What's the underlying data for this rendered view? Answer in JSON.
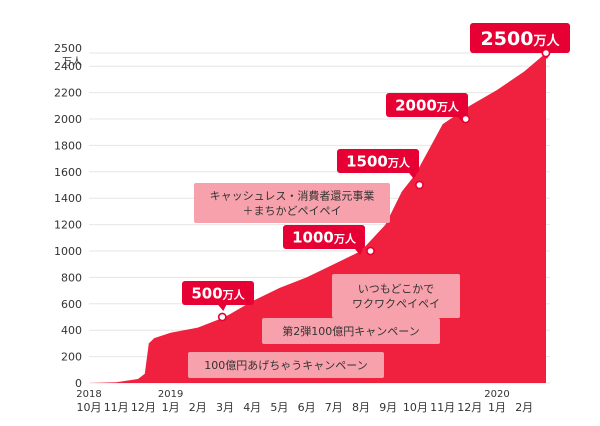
{
  "colors": {
    "area": "#f0213e",
    "callout": "#e60033",
    "callout_text": "#ffffff",
    "note_bg": "#f6a1ab",
    "note_text": "#333333",
    "grid": "#e6e6e6",
    "tick": "#333333"
  },
  "chart_data": {
    "type": "area",
    "title": "",
    "ylabel": "",
    "ylabel_unit": "万人",
    "xlabel": "",
    "ylim": [
      0,
      2500
    ],
    "yticks": [
      0,
      200,
      400,
      600,
      800,
      1000,
      1200,
      1400,
      1600,
      1800,
      2000,
      2200,
      2400,
      2500
    ],
    "grid": true,
    "x_ticks": [
      {
        "year": "2018",
        "month": "10月"
      },
      {
        "year": "",
        "month": "11月"
      },
      {
        "year": "",
        "month": "12月"
      },
      {
        "year": "2019",
        "month": "1月"
      },
      {
        "year": "",
        "month": "2月"
      },
      {
        "year": "",
        "month": "3月"
      },
      {
        "year": "",
        "month": "4月"
      },
      {
        "year": "",
        "month": "5月"
      },
      {
        "year": "",
        "month": "6月"
      },
      {
        "year": "",
        "month": "7月"
      },
      {
        "year": "",
        "month": "8月"
      },
      {
        "year": "",
        "month": "9月"
      },
      {
        "year": "",
        "month": "10月"
      },
      {
        "year": "",
        "month": "11月"
      },
      {
        "year": "",
        "month": "12月"
      },
      {
        "year": "2020",
        "month": "1月"
      },
      {
        "year": "",
        "month": "2月"
      }
    ],
    "series": [
      {
        "x": [
          0,
          1,
          1.8,
          2.05,
          2.2,
          2.4,
          3,
          4,
          5,
          6,
          7,
          8,
          9,
          10,
          10.9,
          11.5,
          12,
          12.5,
          13,
          14,
          15,
          16,
          16.8
        ],
        "y": [
          0,
          5,
          30,
          70,
          300,
          340,
          380,
          420,
          500,
          620,
          720,
          800,
          900,
          1000,
          1200,
          1450,
          1580,
          1770,
          1960,
          2100,
          2220,
          2360,
          2500
        ]
      }
    ],
    "milestones": [
      {
        "x": 4.9,
        "value": 500,
        "number": "500",
        "unit": "万人"
      },
      {
        "x": 10.35,
        "value": 1000,
        "number": "1000",
        "unit": "万人"
      },
      {
        "x": 12.15,
        "value": 1500,
        "number": "1500",
        "unit": "万人"
      },
      {
        "x": 13.85,
        "value": 2000,
        "number": "2000",
        "unit": "万人"
      },
      {
        "x": 16.8,
        "value": 2500,
        "number": "2500",
        "unit": "万人"
      }
    ],
    "annotations": [
      {
        "lines": [
          "100億円あげちゃうキャンペーン"
        ]
      },
      {
        "lines": [
          "第2弾100億円キャンペーン"
        ]
      },
      {
        "lines": [
          "いつもどこかで",
          "ワクワクペイペイ"
        ]
      },
      {
        "lines": [
          "キャッシュレス・消費者還元事業",
          "＋まちかどペイペイ"
        ]
      }
    ]
  }
}
